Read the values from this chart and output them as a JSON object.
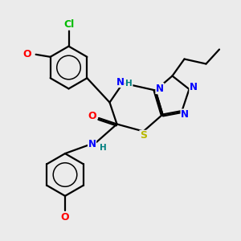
{
  "background_color": "#ebebeb",
  "atom_colors": {
    "C": "#000000",
    "N": "#0000ff",
    "O": "#ff0000",
    "S": "#b8b800",
    "Cl": "#00bb00",
    "H": "#008080",
    "NH": "#008080"
  },
  "bond_color": "#000000",
  "bond_width": 1.6,
  "figsize": [
    3.0,
    3.0
  ],
  "dpi": 100
}
